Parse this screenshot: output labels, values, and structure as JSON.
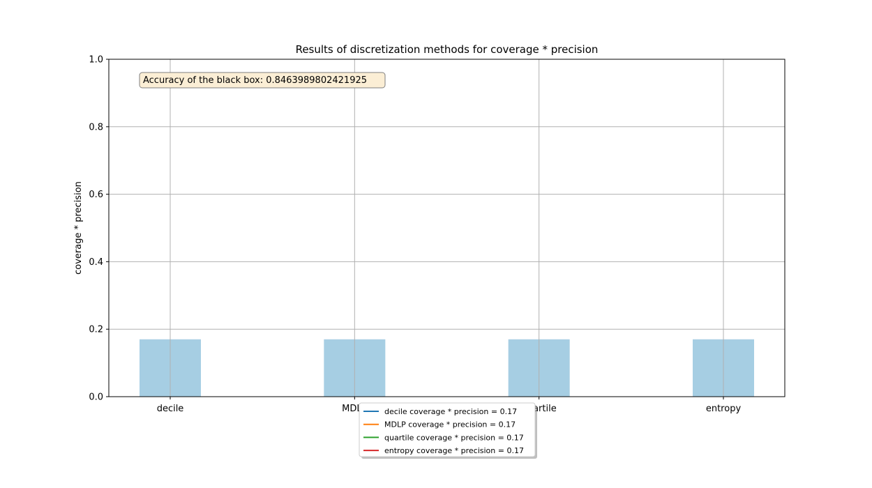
{
  "chart_data": {
    "type": "bar",
    "title": "Results of discretization methods for coverage * precision",
    "xlabel": "",
    "ylabel": "coverage * precision",
    "categories": [
      "decile",
      "MDLP",
      "quartile",
      "entropy"
    ],
    "values": [
      0.17,
      0.17,
      0.17,
      0.17
    ],
    "ylim": [
      0,
      1.0
    ],
    "yticks": [
      "0.0",
      "0.2",
      "0.4",
      "0.6",
      "0.8",
      "1.0"
    ],
    "grid": true,
    "bar_color": "#a6cee3",
    "annotation": "Accuracy of the black box: 0.8463989802421925",
    "legend_placement": "bottom-center",
    "legend": [
      {
        "label": "decile coverage * precision = 0.17",
        "color": "#1f77b4"
      },
      {
        "label": "MDLP coverage * precision = 0.17",
        "color": "#ff7f0e"
      },
      {
        "label": "quartile coverage * precision = 0.17",
        "color": "#2ca02c"
      },
      {
        "label": "entropy coverage * precision = 0.17",
        "color": "#d62728"
      }
    ]
  }
}
